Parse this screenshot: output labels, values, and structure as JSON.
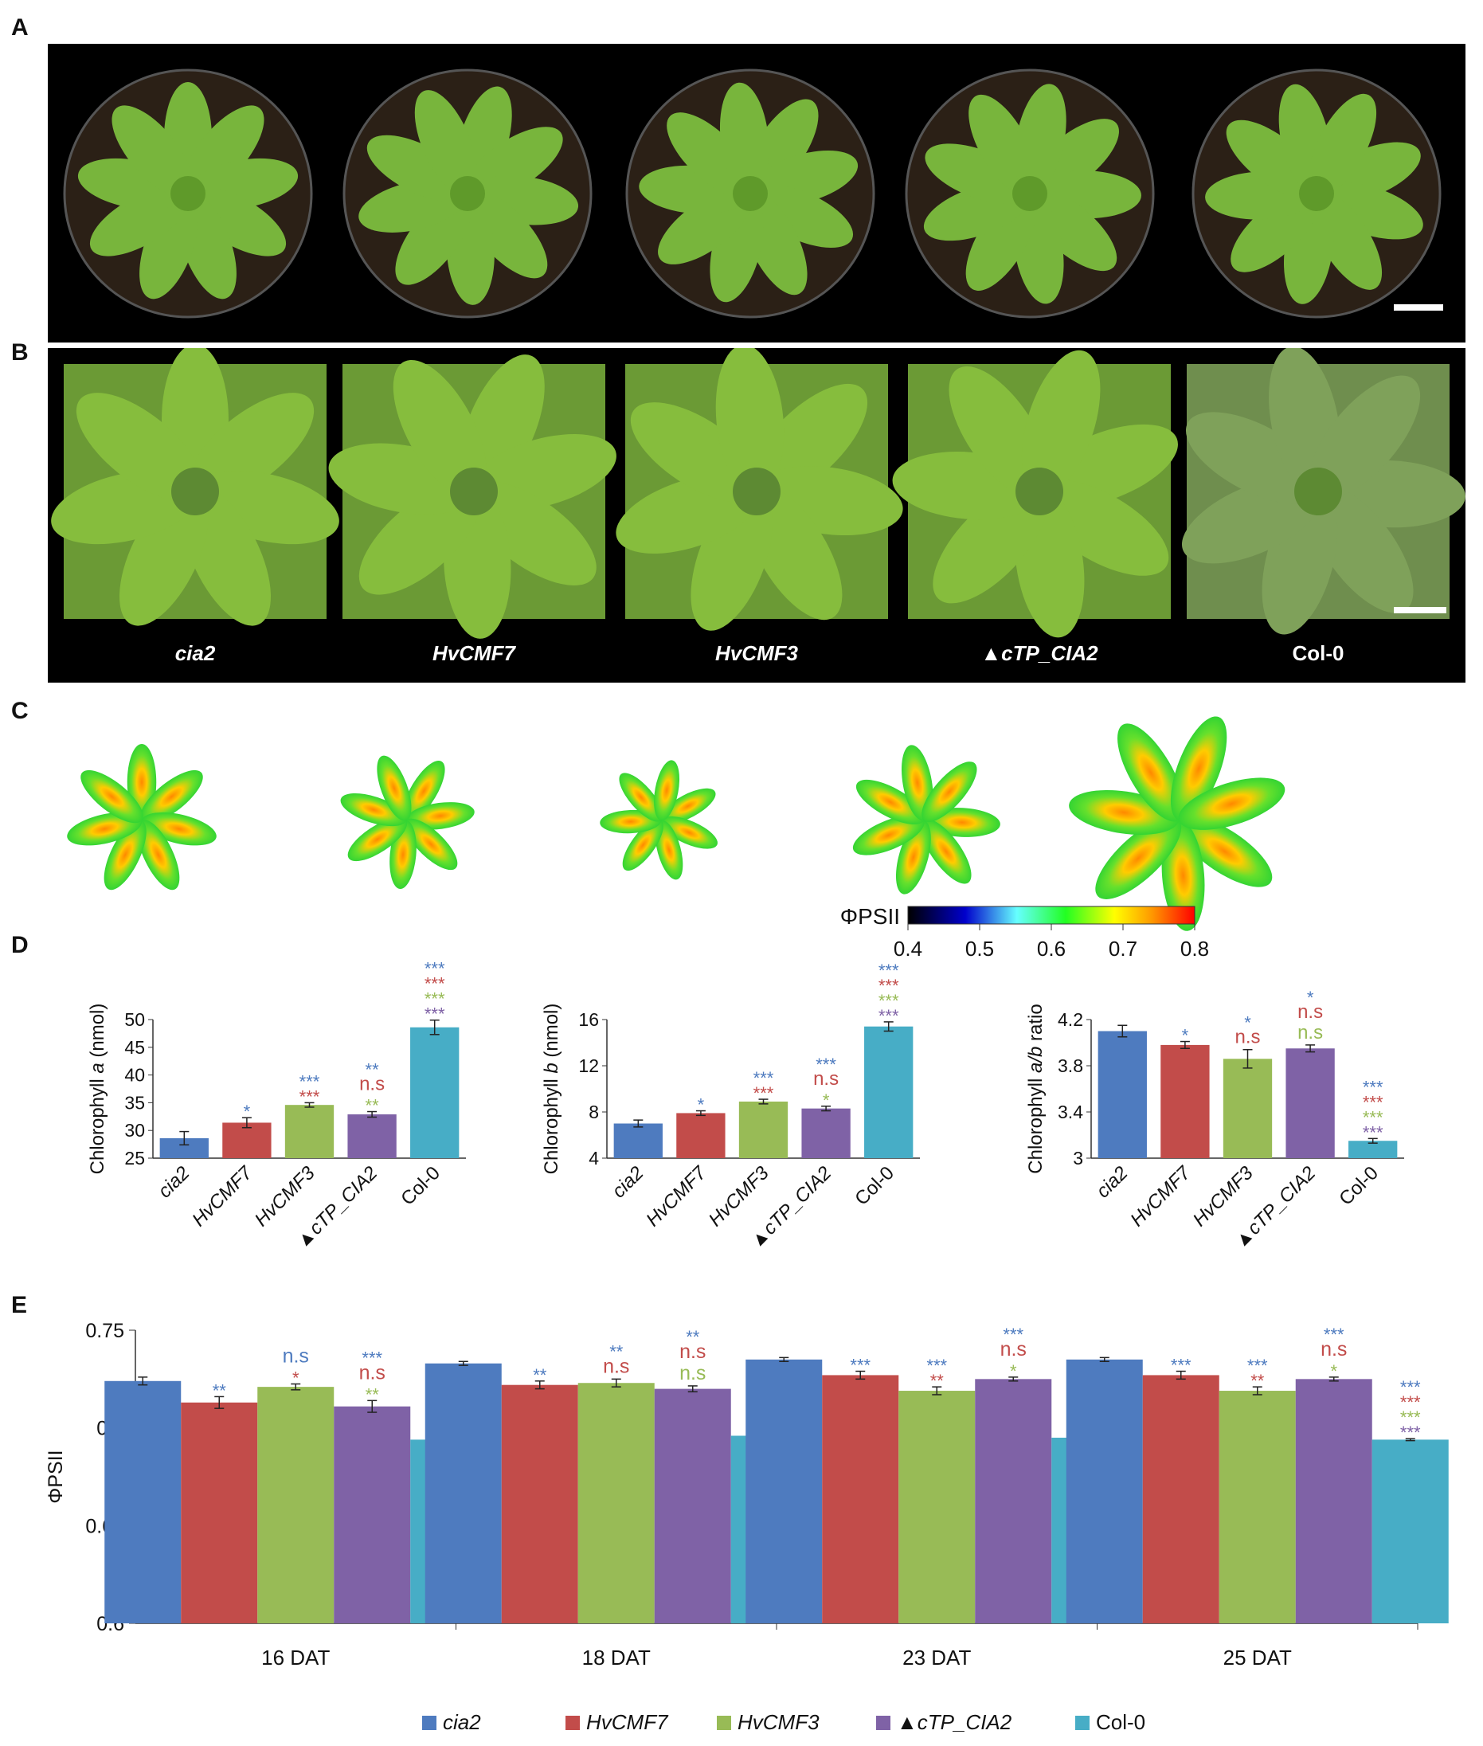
{
  "panel_letters": {
    "a": "A",
    "b": "B",
    "c": "C",
    "d": "D",
    "e": "E"
  },
  "genotypes": [
    "cia2",
    "HvCMF7",
    "HvCMF3",
    "▲cTP_CIA2",
    "Col-0"
  ],
  "genotype_italic": [
    true,
    true,
    true,
    true,
    false
  ],
  "colors": {
    "cia2": "#4e7bbf",
    "HvCMF7": "#c24c4a",
    "HvCMF3": "#98bb56",
    "cTP_CIA2": "#7f62a6",
    "Col-0": "#47adc6"
  },
  "panel_a": {
    "background": "#000000",
    "plant_color": "#78b53c",
    "scale_bar": true
  },
  "panel_b": {
    "background": "#000000",
    "plant_color": "#86bd3d",
    "scale_bar": true
  },
  "panel_c": {
    "colorbar_label": "ΦPSII",
    "colorbar_ticks": [
      "0.4",
      "0.5",
      "0.6",
      "0.7",
      "0.8"
    ]
  },
  "chart_data": [
    {
      "id": "D1",
      "type": "bar",
      "categories": [
        "cia2",
        "HvCMF7",
        "HvCMF3",
        "▲cTP_CIA2",
        "Col-0"
      ],
      "values": [
        28.6,
        31.4,
        34.6,
        32.9,
        48.6
      ],
      "errors": [
        1.2,
        0.9,
        0.4,
        0.5,
        1.3
      ],
      "ylabel_pre": "Chlorophyll ",
      "ylabel_it": "a",
      "ylabel_post": " (nmol)",
      "ylim": [
        25,
        50
      ],
      "yticks": [
        "25",
        "30",
        "35",
        "40",
        "45",
        "50"
      ],
      "annotations": [
        [],
        [
          [
            "*",
            "cia2"
          ]
        ],
        [
          [
            "***",
            "cia2"
          ],
          [
            "***",
            "HvCMF7"
          ]
        ],
        [
          [
            "**",
            "cia2"
          ],
          [
            "n.s",
            "HvCMF7"
          ],
          [
            "**",
            "HvCMF3"
          ]
        ],
        [
          [
            "***",
            "cia2"
          ],
          [
            "***",
            "HvCMF7"
          ],
          [
            "***",
            "HvCMF3"
          ],
          [
            "***",
            "cTP_CIA2"
          ]
        ]
      ]
    },
    {
      "id": "D2",
      "type": "bar",
      "categories": [
        "cia2",
        "HvCMF7",
        "HvCMF3",
        "▲cTP_CIA2",
        "Col-0"
      ],
      "values": [
        7.0,
        7.9,
        8.9,
        8.3,
        15.4
      ],
      "errors": [
        0.3,
        0.2,
        0.2,
        0.2,
        0.4
      ],
      "ylabel_pre": "Chlorophyll ",
      "ylabel_it": "b",
      "ylabel_post": " (nmol)",
      "ylim": [
        4,
        16
      ],
      "yticks": [
        "4",
        "8",
        "12",
        "16"
      ],
      "annotations": [
        [],
        [
          [
            "*",
            "cia2"
          ]
        ],
        [
          [
            "***",
            "cia2"
          ],
          [
            "***",
            "HvCMF7"
          ]
        ],
        [
          [
            "***",
            "cia2"
          ],
          [
            "n.s",
            "HvCMF7"
          ],
          [
            "*",
            "HvCMF3"
          ]
        ],
        [
          [
            "***",
            "cia2"
          ],
          [
            "***",
            "HvCMF7"
          ],
          [
            "***",
            "HvCMF3"
          ],
          [
            "***",
            "cTP_CIA2"
          ]
        ]
      ]
    },
    {
      "id": "D3",
      "type": "bar",
      "categories": [
        "cia2",
        "HvCMF7",
        "HvCMF3",
        "▲cTP_CIA2",
        "Col-0"
      ],
      "values": [
        4.1,
        3.98,
        3.86,
        3.95,
        3.15
      ],
      "errors": [
        0.05,
        0.03,
        0.08,
        0.03,
        0.02
      ],
      "ylabel_pre": "Chlorophyll ",
      "ylabel_it": "a/b",
      "ylabel_post": " ratio",
      "ylim": [
        3,
        4.2
      ],
      "yticks": [
        "3",
        "3.4",
        "3.8",
        "4.2"
      ],
      "annotations": [
        [],
        [
          [
            "*",
            "cia2"
          ]
        ],
        [
          [
            "*",
            "cia2"
          ],
          [
            "n.s",
            "HvCMF7"
          ]
        ],
        [
          [
            "*",
            "cia2"
          ],
          [
            "n.s",
            "HvCMF7"
          ],
          [
            "n.s",
            "HvCMF3"
          ]
        ],
        [
          [
            "***",
            "cia2"
          ],
          [
            "***",
            "HvCMF7"
          ],
          [
            "***",
            "HvCMF3"
          ],
          [
            "***",
            "cTP_CIA2"
          ]
        ]
      ]
    },
    {
      "id": "E",
      "type": "bar",
      "categories": [
        "16 DAT",
        "18 DAT",
        "23 DAT",
        "25 DAT"
      ],
      "series": [
        {
          "name": "cia2",
          "values": [
            0.724,
            0.733,
            0.735,
            0.735
          ],
          "errors": [
            0.002,
            0.001,
            0.001,
            0.001
          ]
        },
        {
          "name": "HvCMF7",
          "values": [
            0.713,
            0.722,
            0.727,
            0.727
          ],
          "errors": [
            0.003,
            0.002,
            0.002,
            0.002
          ]
        },
        {
          "name": "HvCMF3",
          "values": [
            0.721,
            0.723,
            0.719,
            0.719
          ],
          "errors": [
            0.0015,
            0.002,
            0.002,
            0.002
          ]
        },
        {
          "name": "▲cTP_CIA2",
          "values": [
            0.711,
            0.72,
            0.725,
            0.725
          ],
          "errors": [
            0.003,
            0.0015,
            0.001,
            0.001
          ]
        },
        {
          "name": "Col-0",
          "values": [
            0.694,
            0.696,
            0.695,
            0.694
          ],
          "errors": [
            0.0005,
            0.0005,
            0.0005,
            0.0005
          ]
        }
      ],
      "ylabel": "ΦPSII",
      "ylim": [
        0.6,
        0.75
      ],
      "yticks": [
        "0.6",
        "0.65",
        "0.7",
        "0.75"
      ],
      "annotations": [
        [
          [],
          [
            [
              "**",
              "cia2"
            ]
          ],
          [
            [
              "n.s",
              "cia2"
            ],
            [
              "*",
              "HvCMF7"
            ]
          ],
          [
            [
              "***",
              "cia2"
            ],
            [
              "n.s",
              "HvCMF7"
            ],
            [
              "**",
              "HvCMF3"
            ]
          ],
          [
            [
              "***",
              "cia2"
            ],
            [
              "***",
              "HvCMF7"
            ],
            [
              "***",
              "HvCMF3"
            ],
            [
              "***",
              "cTP_CIA2"
            ]
          ]
        ],
        [
          [],
          [
            [
              "**",
              "cia2"
            ]
          ],
          [
            [
              "**",
              "cia2"
            ],
            [
              "n.s",
              "HvCMF7"
            ]
          ],
          [
            [
              "**",
              "cia2"
            ],
            [
              "n.s",
              "HvCMF7"
            ],
            [
              "n.s",
              "HvCMF3"
            ]
          ],
          [
            [
              "***",
              "cia2"
            ],
            [
              "***",
              "HvCMF7"
            ],
            [
              "***",
              "HvCMF3"
            ],
            [
              "***",
              "cTP_CIA2"
            ]
          ]
        ],
        [
          [],
          [
            [
              "***",
              "cia2"
            ]
          ],
          [
            [
              "***",
              "cia2"
            ],
            [
              "**",
              "HvCMF7"
            ]
          ],
          [
            [
              "***",
              "cia2"
            ],
            [
              "n.s",
              "HvCMF7"
            ],
            [
              "*",
              "HvCMF3"
            ]
          ],
          [
            [
              "***",
              "cia2"
            ],
            [
              "***",
              "HvCMF7"
            ],
            [
              "***",
              "HvCMF3"
            ],
            [
              "***",
              "cTP_CIA2"
            ]
          ]
        ],
        [
          [],
          [
            [
              "***",
              "cia2"
            ]
          ],
          [
            [
              "***",
              "cia2"
            ],
            [
              "**",
              "HvCMF7"
            ]
          ],
          [
            [
              "***",
              "cia2"
            ],
            [
              "n.s",
              "HvCMF7"
            ],
            [
              "*",
              "HvCMF3"
            ]
          ],
          [
            [
              "***",
              "cia2"
            ],
            [
              "***",
              "HvCMF7"
            ],
            [
              "***",
              "HvCMF3"
            ],
            [
              "***",
              "cTP_CIA2"
            ]
          ]
        ]
      ],
      "legend": [
        "cia2",
        "HvCMF7",
        "HvCMF3",
        "▲cTP_CIA2",
        "Col-0"
      ],
      "legend_placement": "bottom"
    }
  ]
}
